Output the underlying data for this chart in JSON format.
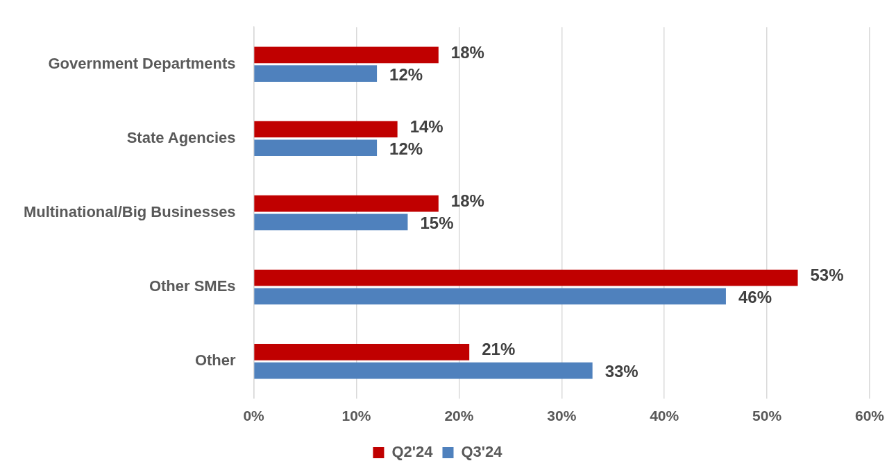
{
  "chart_data": {
    "type": "bar",
    "orientation": "horizontal",
    "categories": [
      "Government Departments",
      "State Agencies",
      "Multinational/Big Businesses",
      "Other SMEs",
      "Other"
    ],
    "series": [
      {
        "name": "Q2'24",
        "color": "#c00000",
        "values": [
          18,
          14,
          18,
          53,
          21
        ],
        "value_labels": [
          "18%",
          "14%",
          "18%",
          "53%",
          "21%"
        ]
      },
      {
        "name": "Q3'24",
        "color": "#4f81bd",
        "values": [
          12,
          12,
          15,
          46,
          33
        ],
        "value_labels": [
          "12%",
          "12%",
          "15%",
          "46%",
          "33%"
        ]
      }
    ],
    "xlim": [
      0,
      60
    ],
    "xticks": [
      {
        "value": 0,
        "label": "0%"
      },
      {
        "value": 10,
        "label": "10%"
      },
      {
        "value": 20,
        "label": "20%"
      },
      {
        "value": 30,
        "label": "30%"
      },
      {
        "value": 40,
        "label": "40%"
      },
      {
        "value": 50,
        "label": "50%"
      },
      {
        "value": 60,
        "label": "60%"
      }
    ],
    "grid": "x",
    "legend": "bottom"
  }
}
